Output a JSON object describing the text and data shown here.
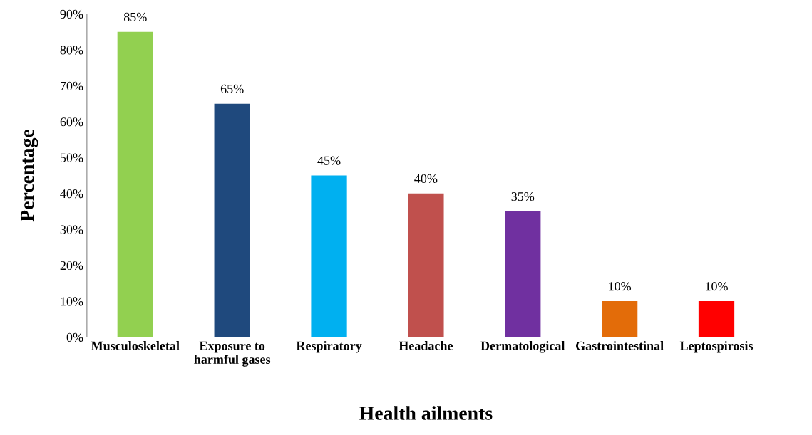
{
  "chart_data": {
    "type": "bar",
    "xlabel": "Health ailments",
    "ylabel": "Percentage",
    "categories": [
      "Musculoskeletal",
      "Exposure to\nharmful gases",
      "Respiratory",
      "Headache",
      "Dermatological",
      "Gastrointestinal",
      "Leptospirosis"
    ],
    "values": [
      85,
      65,
      45,
      40,
      35,
      10,
      10
    ],
    "colors": [
      "#92d050",
      "#1f497d",
      "#00b0f0",
      "#c0504d",
      "#7030a0",
      "#e36c09",
      "#ff0000"
    ],
    "value_labels": [
      "85%",
      "65%",
      "45%",
      "40%",
      "35%",
      "10%",
      "10%"
    ],
    "ylim": [
      0,
      90
    ],
    "yticks": [
      {
        "value": 0,
        "label": "0%"
      },
      {
        "value": 10,
        "label": "10%"
      },
      {
        "value": 20,
        "label": "20%"
      },
      {
        "value": 30,
        "label": "30%"
      },
      {
        "value": 40,
        "label": "40%"
      },
      {
        "value": 50,
        "label": "50%"
      },
      {
        "value": 60,
        "label": "60%"
      },
      {
        "value": 70,
        "label": "70%"
      },
      {
        "value": 80,
        "label": "80%"
      },
      {
        "value": 90,
        "label": "90%"
      }
    ],
    "grid": false,
    "legend": false
  }
}
